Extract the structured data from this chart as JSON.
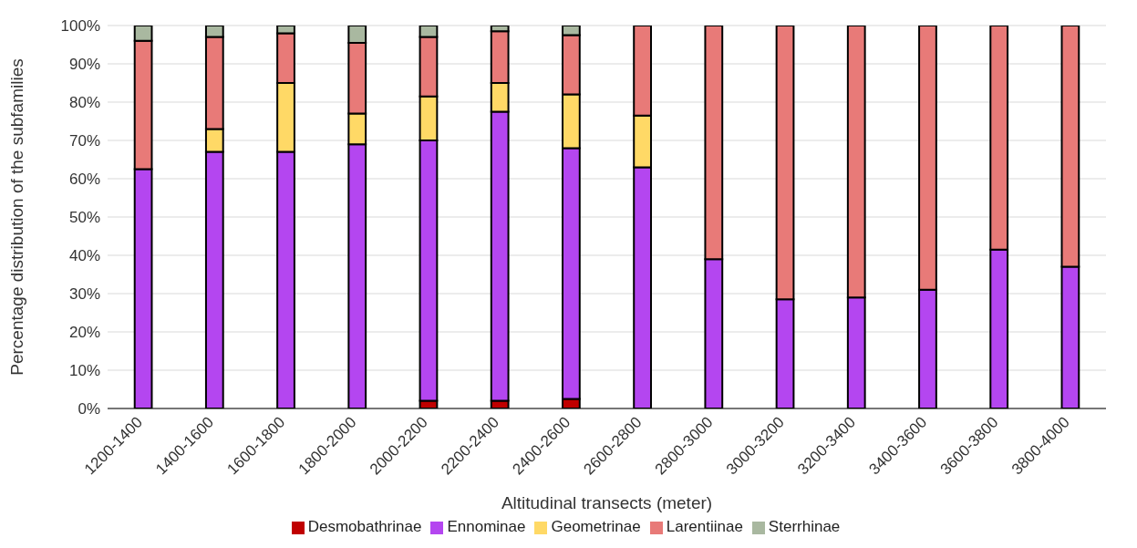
{
  "chart_data": {
    "type": "bar",
    "stacked": true,
    "xlabel": "Altitudinal transects (meter)",
    "ylabel": "Percentage distribution of the subfamilies",
    "categories": [
      "1200-1400",
      "1400-1600",
      "1600-1800",
      "1800-2000",
      "2000-2200",
      "2200-2400",
      "2400-2600",
      "2600-2800",
      "2800-3000",
      "3000-3200",
      "3200-3400",
      "3400-3600",
      "3600-3800",
      "3800-4000"
    ],
    "series": [
      {
        "name": "Desmobathrinae",
        "color": "#c00000",
        "values": [
          0,
          0,
          0,
          0,
          2,
          2,
          2.5,
          0,
          0,
          0,
          0,
          0,
          0,
          0
        ]
      },
      {
        "name": "Ennominae",
        "color": "#b446f0",
        "values": [
          62.5,
          67,
          67,
          69,
          68,
          75.5,
          65.5,
          63,
          39,
          28.5,
          29,
          31,
          41.5,
          37
        ]
      },
      {
        "name": "Geometrinae",
        "color": "#ffd966",
        "values": [
          0,
          6,
          18,
          8,
          11.5,
          7.5,
          14,
          13.5,
          0,
          0,
          0,
          0,
          0,
          0
        ]
      },
      {
        "name": "Larentiinae",
        "color": "#e87a78",
        "values": [
          33.5,
          24,
          13,
          18.5,
          15.5,
          13.5,
          15.5,
          23.5,
          61,
          71.5,
          71,
          69,
          58.5,
          63
        ]
      },
      {
        "name": "Sterrhinae",
        "color": "#a9b8a0",
        "values": [
          4,
          3,
          2,
          4.5,
          3,
          1.5,
          2.5,
          0,
          0,
          0,
          0,
          0,
          0,
          0
        ]
      }
    ],
    "ylim": [
      0,
      100
    ],
    "yticks": [
      {
        "value": 0,
        "label": "0%"
      },
      {
        "value": 10,
        "label": "10%"
      },
      {
        "value": 20,
        "label": "20%"
      },
      {
        "value": 30,
        "label": "30%"
      },
      {
        "value": 40,
        "label": "40%"
      },
      {
        "value": 50,
        "label": "50%"
      },
      {
        "value": 60,
        "label": "60%"
      },
      {
        "value": 70,
        "label": "70%"
      },
      {
        "value": 80,
        "label": "80%"
      },
      {
        "value": 90,
        "label": "90%"
      },
      {
        "value": 100,
        "label": "100%"
      }
    ],
    "grid": "y",
    "legend": "bottom"
  }
}
